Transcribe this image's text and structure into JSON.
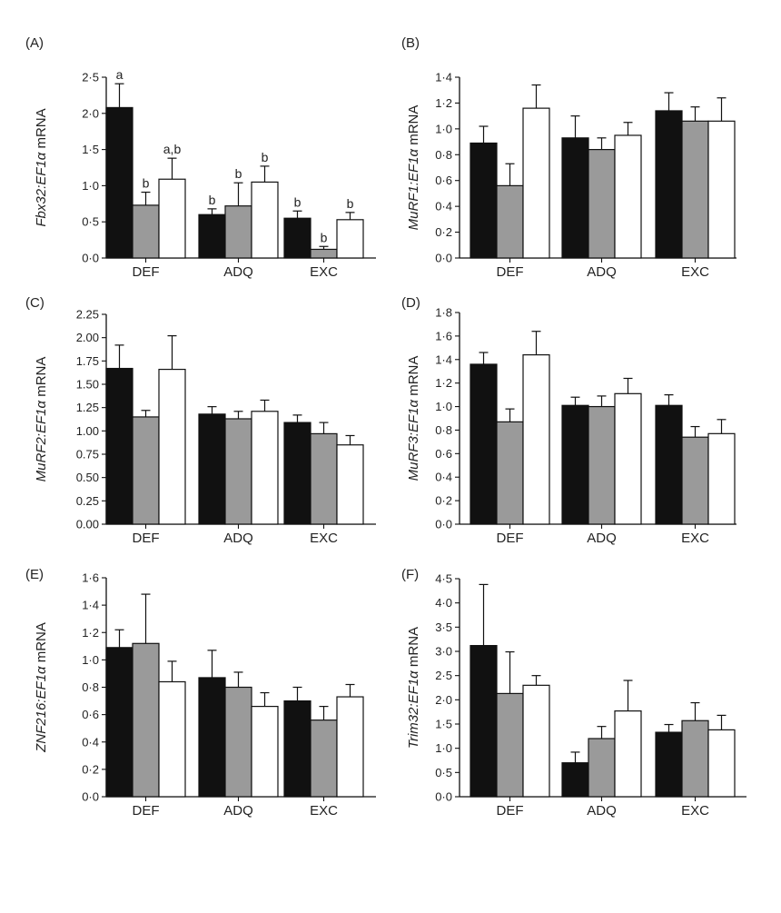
{
  "colors": {
    "bar_fills": [
      "#111111",
      "#9a9a9a",
      "#ffffff"
    ],
    "stroke": "#111111"
  },
  "chart_data": [
    {
      "type": "bar",
      "panel": "(A)",
      "ylabel_italic": "Fbx32:EF1α",
      "ylabel_rest": " mRNA",
      "categories": [
        "DEF",
        "ADQ",
        "EXC"
      ],
      "ylim": [
        0,
        2.5
      ],
      "yticks": [
        "0·0",
        "0·5",
        "1·0",
        "1·5",
        "2·0",
        "2·5"
      ],
      "series": [
        {
          "values": [
            2.08,
            0.6,
            0.55
          ],
          "errors": [
            0.33,
            0.08,
            0.1
          ],
          "labels": [
            "a",
            "b",
            "b"
          ]
        },
        {
          "values": [
            0.73,
            0.72,
            0.12
          ],
          "errors": [
            0.18,
            0.32,
            0.04
          ],
          "labels": [
            "b",
            "b",
            "b"
          ]
        },
        {
          "values": [
            1.09,
            1.05,
            0.53
          ],
          "errors": [
            0.29,
            0.22,
            0.1
          ],
          "labels": [
            "a,b",
            "b",
            "b"
          ]
        }
      ]
    },
    {
      "type": "bar",
      "panel": "(B)",
      "ylabel_italic": "MuRF1:EF1α",
      "ylabel_rest": " mRNA",
      "categories": [
        "DEF",
        "ADQ",
        "EXC"
      ],
      "ylim": [
        0,
        1.4
      ],
      "yticks": [
        "0·0",
        "0·2",
        "0·4",
        "0·6",
        "0·8",
        "1·0",
        "1·2",
        "1·4"
      ],
      "series": [
        {
          "values": [
            0.89,
            0.93,
            1.14
          ],
          "errors": [
            0.13,
            0.17,
            0.14
          ]
        },
        {
          "values": [
            0.56,
            0.84,
            1.06
          ],
          "errors": [
            0.17,
            0.09,
            0.11
          ]
        },
        {
          "values": [
            1.16,
            0.95,
            1.06
          ],
          "errors": [
            0.18,
            0.1,
            0.18
          ]
        }
      ]
    },
    {
      "type": "bar",
      "panel": "(C)",
      "ylabel_italic": "MuRF2:EF1α",
      "ylabel_rest": " mRNA",
      "categories": [
        "DEF",
        "ADQ",
        "EXC"
      ],
      "ylim": [
        0,
        2.25
      ],
      "yticks": [
        "0.00",
        "0.25",
        "0.50",
        "0.75",
        "1.00",
        "1.25",
        "1.50",
        "1.75",
        "2.00",
        "2.25"
      ],
      "series": [
        {
          "values": [
            1.67,
            1.18,
            1.09
          ],
          "errors": [
            0.25,
            0.08,
            0.08
          ]
        },
        {
          "values": [
            1.15,
            1.13,
            0.97
          ],
          "errors": [
            0.07,
            0.08,
            0.12
          ]
        },
        {
          "values": [
            1.66,
            1.21,
            0.85
          ],
          "errors": [
            0.36,
            0.12,
            0.1
          ]
        }
      ]
    },
    {
      "type": "bar",
      "panel": "(D)",
      "ylabel_italic": "MuRF3:EF1α",
      "ylabel_rest": " mRNA",
      "categories": [
        "DEF",
        "ADQ",
        "EXC"
      ],
      "ylim": [
        0,
        1.8
      ],
      "yticks": [
        "0·0",
        "0·2",
        "0·4",
        "0·6",
        "0·8",
        "1·0",
        "1·2",
        "1·4",
        "1·6",
        "1·8"
      ],
      "series": [
        {
          "values": [
            1.36,
            1.01,
            1.01
          ],
          "errors": [
            0.1,
            0.07,
            0.09
          ]
        },
        {
          "values": [
            0.87,
            1.0,
            0.74
          ],
          "errors": [
            0.11,
            0.09,
            0.09
          ]
        },
        {
          "values": [
            1.44,
            1.11,
            0.77
          ],
          "errors": [
            0.2,
            0.13,
            0.12
          ]
        }
      ]
    },
    {
      "type": "bar",
      "panel": "(E)",
      "ylabel_italic": "ZNF216:EF1α",
      "ylabel_rest": " mRNA",
      "categories": [
        "DEF",
        "ADQ",
        "EXC"
      ],
      "ylim": [
        0,
        1.6
      ],
      "yticks": [
        "0·0",
        "0·2",
        "0·4",
        "0·6",
        "0·8",
        "1·0",
        "1·2",
        "1·4",
        "1·6"
      ],
      "series": [
        {
          "values": [
            1.09,
            0.87,
            0.7
          ],
          "errors": [
            0.13,
            0.2,
            0.1
          ]
        },
        {
          "values": [
            1.12,
            0.8,
            0.56
          ],
          "errors": [
            0.36,
            0.11,
            0.1
          ]
        },
        {
          "values": [
            0.84,
            0.66,
            0.73
          ],
          "errors": [
            0.15,
            0.1,
            0.09
          ]
        }
      ]
    },
    {
      "type": "bar",
      "panel": "(F)",
      "ylabel_italic": "Trim32:EF1α",
      "ylabel_rest": " mRNA",
      "categories": [
        "DEF",
        "ADQ",
        "EXC"
      ],
      "ylim": [
        0,
        4.5
      ],
      "yticks": [
        "0·0",
        "0·5",
        "1·0",
        "1·5",
        "2·0",
        "2·5",
        "3·0",
        "3·5",
        "4·0",
        "4·5"
      ],
      "series": [
        {
          "values": [
            3.12,
            0.7,
            1.33
          ],
          "errors": [
            1.26,
            0.22,
            0.16
          ]
        },
        {
          "values": [
            2.13,
            1.2,
            1.57
          ],
          "errors": [
            0.86,
            0.25,
            0.37
          ]
        },
        {
          "values": [
            2.3,
            1.77,
            1.38
          ],
          "errors": [
            0.2,
            0.63,
            0.3
          ]
        }
      ]
    }
  ]
}
